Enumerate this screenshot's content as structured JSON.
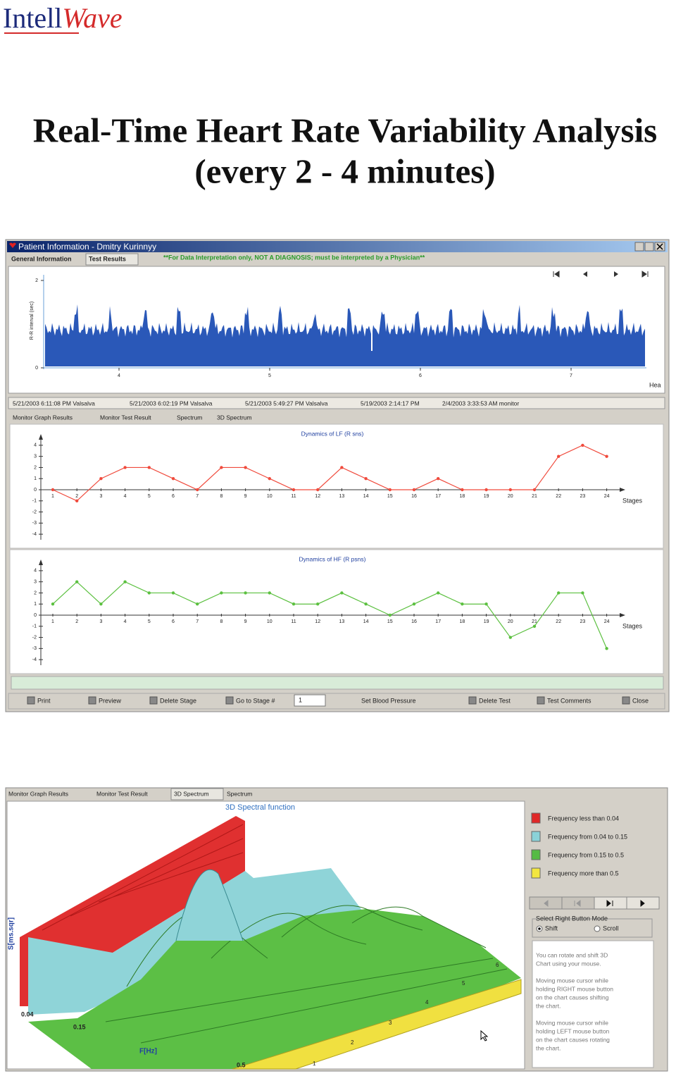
{
  "header": {
    "logo_part1": "Intell",
    "logo_part2": "Wave",
    "title_line1": "Real-Time Heart Rate Variability Analysis",
    "title_line2": "(every 2 - 4 minutes)"
  },
  "window1": {
    "title": "Patient Information - Dmitry Kurinnyy",
    "tabs": [
      "General Information",
      "Test Results"
    ],
    "warning": "**For Data Interpretation only, NOT A DIAGNOSIS; must be interpreted by a Physician**",
    "rr_chart": {
      "ylabel": "R-R interval (sec)",
      "ylim": [
        0,
        2
      ],
      "yticks": [
        0,
        2
      ],
      "xlim": [
        3.5,
        7.5
      ],
      "xticks": [
        4,
        5,
        6,
        7
      ],
      "xlabel": "Hea"
    },
    "test_tabs": [
      "5/21/2003 6:11:08 PM Valsalva",
      "5/21/2003 6:02:19 PM Valsalva",
      "5/21/2003 5:49:27 PM Valsalva",
      "5/19/2003 2:14:17 PM",
      "2/4/2003 3:33:53 AM monitor"
    ],
    "view_tabs": [
      "Monitor Graph Results",
      "Monitor Test Result",
      "Spectrum",
      "3D Spectrum"
    ],
    "buttons": [
      "Print",
      "Preview",
      "Delete Stage",
      "Go to Stage #",
      "Set Blood Pressure",
      "Delete Test",
      "Test Comments",
      "Close"
    ],
    "stage_input": 1
  },
  "chart_data": [
    {
      "type": "line",
      "title": "Dynamics of LF (R sns)",
      "xlabel": "Stages",
      "categories": [
        1,
        2,
        3,
        4,
        5,
        6,
        7,
        8,
        9,
        10,
        11,
        12,
        13,
        14,
        15,
        16,
        17,
        18,
        19,
        20,
        21,
        22,
        23,
        24
      ],
      "values": [
        0,
        -1,
        1,
        2,
        2,
        1,
        0,
        2,
        2,
        1,
        0,
        0,
        2,
        1,
        0,
        0,
        1,
        0,
        0,
        0,
        0,
        3,
        4,
        3
      ],
      "ylim": [
        -4.5,
        4.5
      ],
      "yticks": [
        -4,
        -3,
        -2,
        -1,
        0,
        1,
        2,
        3,
        4
      ],
      "color": "#f04a3c"
    },
    {
      "type": "line",
      "title": "Dynamics of HF (R psns)",
      "xlabel": "Stages",
      "categories": [
        1,
        2,
        3,
        4,
        5,
        6,
        7,
        8,
        9,
        10,
        11,
        12,
        13,
        14,
        15,
        16,
        17,
        18,
        19,
        20,
        21,
        22,
        23,
        24
      ],
      "values": [
        1,
        3,
        1,
        3,
        2,
        2,
        1,
        2,
        2,
        2,
        1,
        1,
        2,
        1,
        0,
        1,
        2,
        1,
        1,
        -2,
        -1,
        2,
        2,
        -3
      ],
      "ylim": [
        -4.5,
        4.5
      ],
      "yticks": [
        -4,
        -3,
        -2,
        -1,
        0,
        1,
        2,
        3,
        4
      ],
      "color": "#5cc040"
    }
  ],
  "window2": {
    "tabs": [
      "Monitor Graph Results",
      "Monitor Test Result",
      "3D Spectrum",
      "Spectrum"
    ],
    "title": "3D Spectral function",
    "legend": [
      {
        "label": "Frequency less than 0.04",
        "color": "#e02828"
      },
      {
        "label": "Frequency from 0.04 to 0.15",
        "color": "#8ad2d8"
      },
      {
        "label": "Frequency from 0.15 to 0.5",
        "color": "#55bb44"
      },
      {
        "label": "Frequency more than 0.5",
        "color": "#f2e640"
      }
    ],
    "s_label": "S[ms.sqr]",
    "f_label": "F[Hz]",
    "freq_ticks": [
      0.04,
      0.15,
      0.5
    ],
    "stage_ticks": [
      1,
      2,
      3,
      4,
      5,
      6
    ],
    "mode_title": "Select Right Button Mode",
    "modes": [
      "Shift",
      "Scroll"
    ],
    "help": [
      [
        "You can rotate and shift 3D",
        "Chart using your mouse."
      ],
      [
        "Moving mouse cursor while",
        "holding RIGHT mouse button",
        "on the chart causes shifting",
        "the chart."
      ],
      [
        "Moving mouse cursor while",
        "holding LEFT mouse button",
        "on the chart causes rotating",
        "the chart."
      ]
    ]
  }
}
